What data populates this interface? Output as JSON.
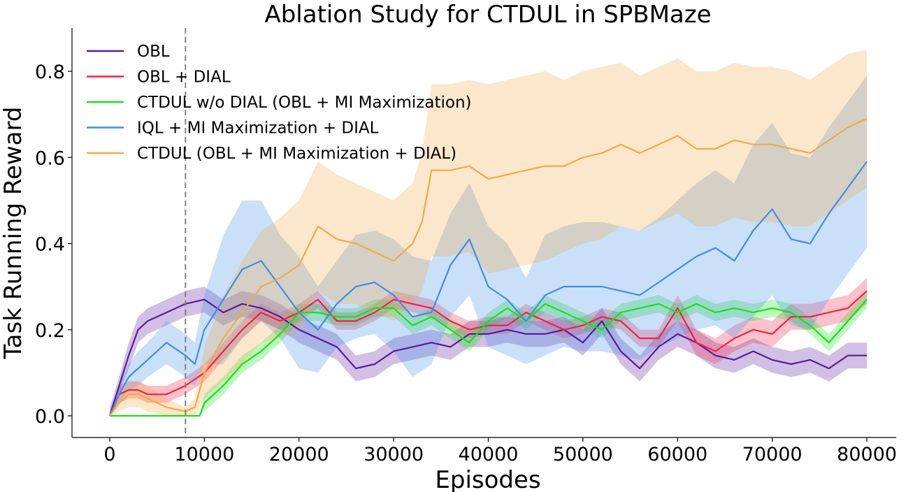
{
  "chart_data": {
    "type": "line",
    "title": "Ablation Study for CTDUL in SPBMaze",
    "xlabel": "Episodes",
    "ylabel": "Task Running Reward",
    "xlim": [
      -4000,
      83000
    ],
    "ylim": [
      -0.05,
      0.9
    ],
    "xticks": [
      0,
      10000,
      20000,
      30000,
      40000,
      50000,
      60000,
      70000,
      80000
    ],
    "yticks": [
      0.0,
      0.2,
      0.4,
      0.6,
      0.8
    ],
    "xtick_labels": [
      "0",
      "10000",
      "20000",
      "30000",
      "40000",
      "50000",
      "60000",
      "70000",
      "80000"
    ],
    "ytick_labels": [
      "0.0",
      "0.2",
      "0.4",
      "0.6",
      "0.8"
    ],
    "vline_x": 8000,
    "legend_position": "upper-left",
    "grid": false,
    "series": [
      {
        "name": "OBL",
        "color": "#5c1a9e",
        "x": [
          0,
          1000,
          2000,
          3000,
          4000,
          6000,
          8000,
          10000,
          12000,
          14000,
          16000,
          18000,
          20000,
          22000,
          24000,
          26000,
          28000,
          30000,
          32000,
          34000,
          36000,
          38000,
          40000,
          42000,
          44000,
          46000,
          48000,
          50000,
          52000,
          54000,
          56000,
          58000,
          60000,
          62000,
          64000,
          66000,
          68000,
          70000,
          72000,
          74000,
          76000,
          78000,
          80000
        ],
        "y": [
          0.0,
          0.07,
          0.14,
          0.2,
          0.22,
          0.24,
          0.26,
          0.27,
          0.24,
          0.26,
          0.25,
          0.23,
          0.2,
          0.18,
          0.16,
          0.11,
          0.12,
          0.15,
          0.16,
          0.17,
          0.16,
          0.19,
          0.19,
          0.2,
          0.19,
          0.19,
          0.2,
          0.17,
          0.22,
          0.15,
          0.11,
          0.16,
          0.19,
          0.17,
          0.14,
          0.13,
          0.15,
          0.13,
          0.12,
          0.13,
          0.11,
          0.14,
          0.14
        ],
        "band": [
          0.02,
          0.02,
          0.03,
          0.03,
          0.03,
          0.03,
          0.03,
          0.03,
          0.03,
          0.03,
          0.03,
          0.03,
          0.03,
          0.03,
          0.03,
          0.03,
          0.03,
          0.03,
          0.03,
          0.03,
          0.03,
          0.03,
          0.03,
          0.03,
          0.03,
          0.03,
          0.03,
          0.03,
          0.03,
          0.03,
          0.03,
          0.03,
          0.03,
          0.03,
          0.03,
          0.03,
          0.03,
          0.03,
          0.03,
          0.03,
          0.03,
          0.03,
          0.03
        ]
      },
      {
        "name": "OBL + DIAL",
        "color": "#f5223f",
        "x": [
          0,
          1000,
          2000,
          3000,
          4000,
          6000,
          8000,
          10000,
          12000,
          14000,
          16000,
          18000,
          20000,
          22000,
          24000,
          26000,
          28000,
          30000,
          32000,
          34000,
          36000,
          38000,
          40000,
          42000,
          44000,
          46000,
          48000,
          50000,
          52000,
          54000,
          56000,
          58000,
          60000,
          62000,
          64000,
          66000,
          68000,
          70000,
          72000,
          74000,
          76000,
          78000,
          80000
        ],
        "y": [
          0.0,
          0.05,
          0.06,
          0.06,
          0.05,
          0.05,
          0.07,
          0.1,
          0.15,
          0.2,
          0.24,
          0.22,
          0.24,
          0.27,
          0.22,
          0.22,
          0.24,
          0.27,
          0.26,
          0.25,
          0.22,
          0.2,
          0.21,
          0.21,
          0.24,
          0.22,
          0.2,
          0.21,
          0.23,
          0.22,
          0.18,
          0.18,
          0.25,
          0.17,
          0.15,
          0.18,
          0.2,
          0.19,
          0.23,
          0.23,
          0.24,
          0.25,
          0.29
        ],
        "band": [
          0.01,
          0.02,
          0.02,
          0.02,
          0.02,
          0.02,
          0.02,
          0.02,
          0.02,
          0.02,
          0.02,
          0.02,
          0.02,
          0.02,
          0.02,
          0.02,
          0.02,
          0.02,
          0.02,
          0.02,
          0.02,
          0.02,
          0.02,
          0.02,
          0.02,
          0.02,
          0.02,
          0.02,
          0.02,
          0.02,
          0.02,
          0.02,
          0.03,
          0.03,
          0.03,
          0.03,
          0.03,
          0.03,
          0.03,
          0.03,
          0.03,
          0.03,
          0.03
        ]
      },
      {
        "name": "CTDUL w/o DIAL (OBL + MI Maximization)",
        "color": "#16e318",
        "x": [
          0,
          2000,
          4000,
          6000,
          8000,
          9500,
          10000,
          12000,
          14000,
          16000,
          18000,
          20000,
          22000,
          24000,
          26000,
          28000,
          30000,
          32000,
          34000,
          36000,
          38000,
          40000,
          42000,
          44000,
          46000,
          48000,
          50000,
          52000,
          54000,
          56000,
          58000,
          60000,
          62000,
          64000,
          66000,
          68000,
          70000,
          72000,
          74000,
          76000,
          78000,
          80000
        ],
        "y": [
          0.0,
          0.0,
          0.0,
          0.0,
          0.0,
          0.0,
          0.03,
          0.07,
          0.12,
          0.15,
          0.19,
          0.24,
          0.24,
          0.23,
          0.23,
          0.25,
          0.25,
          0.21,
          0.23,
          0.2,
          0.17,
          0.22,
          0.25,
          0.22,
          0.26,
          0.24,
          0.22,
          0.2,
          0.24,
          0.25,
          0.26,
          0.24,
          0.26,
          0.24,
          0.25,
          0.24,
          0.25,
          0.24,
          0.21,
          0.17,
          0.22,
          0.27
        ],
        "band": [
          0.0,
          0.0,
          0.0,
          0.0,
          0.0,
          0.0,
          0.02,
          0.02,
          0.02,
          0.02,
          0.02,
          0.02,
          0.02,
          0.02,
          0.02,
          0.02,
          0.02,
          0.02,
          0.02,
          0.02,
          0.02,
          0.02,
          0.02,
          0.02,
          0.02,
          0.02,
          0.02,
          0.02,
          0.02,
          0.02,
          0.02,
          0.02,
          0.02,
          0.02,
          0.02,
          0.02,
          0.02,
          0.02,
          0.02,
          0.02,
          0.02,
          0.02
        ]
      },
      {
        "name": "IQL + MI Maximization + DIAL",
        "color": "#3f8ee8",
        "x": [
          0,
          1000,
          2000,
          3000,
          4000,
          6000,
          8000,
          9000,
          10000,
          12000,
          14000,
          16000,
          18000,
          20000,
          22000,
          24000,
          26000,
          28000,
          30000,
          32000,
          34000,
          36000,
          38000,
          40000,
          42000,
          44000,
          46000,
          48000,
          50000,
          52000,
          54000,
          56000,
          58000,
          60000,
          62000,
          64000,
          66000,
          68000,
          70000,
          72000,
          74000,
          76000,
          78000,
          80000
        ],
        "y": [
          0.0,
          0.05,
          0.09,
          0.11,
          0.13,
          0.17,
          0.14,
          0.12,
          0.2,
          0.27,
          0.34,
          0.36,
          0.3,
          0.24,
          0.2,
          0.26,
          0.3,
          0.31,
          0.28,
          0.23,
          0.24,
          0.35,
          0.41,
          0.3,
          0.27,
          0.22,
          0.28,
          0.3,
          0.3,
          0.3,
          0.29,
          0.28,
          0.31,
          0.34,
          0.37,
          0.39,
          0.36,
          0.43,
          0.48,
          0.41,
          0.4,
          0.47,
          0.53,
          0.59
        ],
        "band": [
          0.01,
          0.02,
          0.03,
          0.04,
          0.04,
          0.05,
          0.05,
          0.05,
          0.08,
          0.15,
          0.16,
          0.14,
          0.12,
          0.13,
          0.1,
          0.1,
          0.12,
          0.12,
          0.13,
          0.14,
          0.12,
          0.12,
          0.13,
          0.14,
          0.13,
          0.1,
          0.14,
          0.14,
          0.15,
          0.15,
          0.15,
          0.15,
          0.15,
          0.16,
          0.17,
          0.18,
          0.18,
          0.2,
          0.2,
          0.2,
          0.2,
          0.2,
          0.2,
          0.2
        ]
      },
      {
        "name": "CTDUL (OBL + MI Maximization + DIAL)",
        "color": "#f2aa44",
        "x": [
          0,
          1000,
          2000,
          3000,
          4000,
          6000,
          8000,
          9000,
          10000,
          12000,
          14000,
          16000,
          18000,
          20000,
          22000,
          24000,
          26000,
          28000,
          30000,
          32000,
          33000,
          34000,
          36000,
          38000,
          40000,
          42000,
          44000,
          46000,
          48000,
          50000,
          52000,
          54000,
          56000,
          58000,
          60000,
          62000,
          64000,
          66000,
          68000,
          70000,
          72000,
          74000,
          76000,
          78000,
          80000
        ],
        "y": [
          0.0,
          0.03,
          0.05,
          0.05,
          0.04,
          0.02,
          0.01,
          0.02,
          0.1,
          0.18,
          0.24,
          0.3,
          0.32,
          0.35,
          0.44,
          0.41,
          0.4,
          0.38,
          0.36,
          0.4,
          0.45,
          0.57,
          0.57,
          0.58,
          0.55,
          0.56,
          0.57,
          0.58,
          0.58,
          0.6,
          0.61,
          0.63,
          0.61,
          0.63,
          0.65,
          0.62,
          0.62,
          0.64,
          0.63,
          0.63,
          0.62,
          0.61,
          0.64,
          0.67,
          0.69
        ],
        "band": [
          0.01,
          0.02,
          0.03,
          0.03,
          0.03,
          0.02,
          0.01,
          0.02,
          0.06,
          0.1,
          0.12,
          0.13,
          0.14,
          0.15,
          0.15,
          0.15,
          0.14,
          0.14,
          0.14,
          0.14,
          0.16,
          0.2,
          0.2,
          0.2,
          0.22,
          0.22,
          0.22,
          0.22,
          0.2,
          0.2,
          0.2,
          0.19,
          0.18,
          0.18,
          0.18,
          0.18,
          0.18,
          0.18,
          0.18,
          0.18,
          0.18,
          0.17,
          0.17,
          0.17,
          0.16
        ]
      }
    ]
  }
}
